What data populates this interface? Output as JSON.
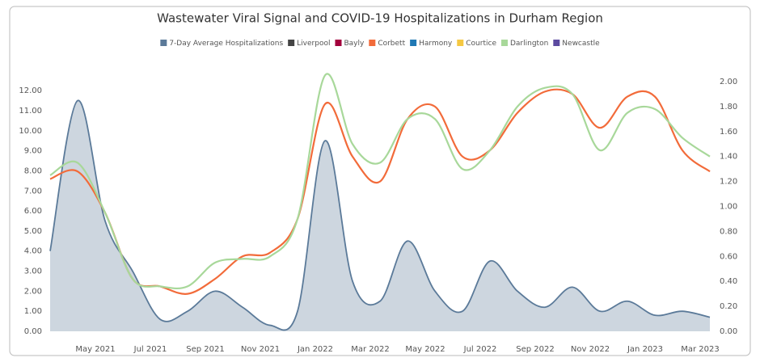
{
  "chart_data": {
    "type": "line",
    "title": "Wastewater Viral Signal and COVID-19 Hospitalizations in Durham Region",
    "x": [
      "2021-03",
      "2021-04",
      "2021-05",
      "2021-06",
      "2021-07",
      "2021-08",
      "2021-09",
      "2021-10",
      "2021-11",
      "2021-12",
      "2022-01",
      "2022-02",
      "2022-03",
      "2022-04",
      "2022-05",
      "2022-06",
      "2022-07",
      "2022-08",
      "2022-09",
      "2022-10",
      "2022-11",
      "2022-12",
      "2023-01",
      "2023-02",
      "2023-03"
    ],
    "xticks": [
      {
        "value": "2021-05",
        "label": "May 2021"
      },
      {
        "value": "2021-07",
        "label": "Jul 2021"
      },
      {
        "value": "2021-09",
        "label": "Sep 2021"
      },
      {
        "value": "2021-11",
        "label": "Nov 2021"
      },
      {
        "value": "2022-01",
        "label": "Jan 2022"
      },
      {
        "value": "2022-03",
        "label": "Mar 2022"
      },
      {
        "value": "2022-05",
        "label": "May 2022"
      },
      {
        "value": "2022-07",
        "label": "Jul 2022"
      },
      {
        "value": "2022-09",
        "label": "Sep 2022"
      },
      {
        "value": "2022-11",
        "label": "Nov 2022"
      },
      {
        "value": "2023-01",
        "label": "Jan 2023"
      },
      {
        "value": "2023-03",
        "label": "Mar 2023"
      }
    ],
    "ylim": [
      0,
      12.45
    ],
    "yticks": [
      {
        "value": 0,
        "label": "0.00"
      },
      {
        "value": 1,
        "label": "1.00"
      },
      {
        "value": 2,
        "label": "2.00"
      },
      {
        "value": 3,
        "label": "3.00"
      },
      {
        "value": 4,
        "label": "4.00"
      },
      {
        "value": 5,
        "label": "5.00"
      },
      {
        "value": 6,
        "label": "6.00"
      },
      {
        "value": 7,
        "label": "7.00"
      },
      {
        "value": 8,
        "label": "8.00"
      },
      {
        "value": 9,
        "label": "9.00"
      },
      {
        "value": 10,
        "label": "10.00"
      },
      {
        "value": 11,
        "label": "11.00"
      },
      {
        "value": 12,
        "label": "12.00"
      }
    ],
    "y2lim": [
      0,
      2
    ],
    "y2ticks": [
      {
        "value": 0,
        "label": "0.00"
      },
      {
        "value": 0.2,
        "label": "0.20"
      },
      {
        "value": 0.4,
        "label": "0.40"
      },
      {
        "value": 0.6,
        "label": "0.60"
      },
      {
        "value": 0.8,
        "label": "0.80"
      },
      {
        "value": 1,
        "label": "1.00"
      },
      {
        "value": 1.2,
        "label": "1.20"
      },
      {
        "value": 1.4,
        "label": "1.40"
      },
      {
        "value": 1.6,
        "label": "1.60"
      },
      {
        "value": 1.8,
        "label": "1.80"
      },
      {
        "value": 2,
        "label": "2.00"
      }
    ],
    "series": [
      {
        "name": "7-Day Average Hospitalizations",
        "color": "#5b7a99",
        "fill": "#cdd6df",
        "values": [
          4.0,
          11.5,
          5.5,
          3.0,
          0.6,
          1.0,
          2.0,
          1.2,
          0.3,
          1.0,
          9.5,
          2.5,
          1.5,
          4.5,
          2.0,
          1.0,
          3.5,
          2.0,
          1.2,
          2.2,
          1.0,
          1.5,
          0.8,
          1.0,
          0.7
        ]
      },
      {
        "name": "Liverpool",
        "color": "#444444",
        "axis": "y2",
        "values": [
          null,
          null,
          null,
          null,
          null,
          null,
          null,
          null,
          null,
          null,
          null,
          null,
          null,
          null,
          null,
          null,
          null,
          null,
          null,
          null,
          null,
          null,
          null,
          null,
          null
        ]
      },
      {
        "name": "Bayly",
        "color": "#a3003c",
        "axis": "y2",
        "values": [
          null,
          null,
          null,
          null,
          null,
          null,
          null,
          null,
          null,
          null,
          null,
          null,
          null,
          null,
          null,
          null,
          null,
          null,
          null,
          null,
          null,
          null,
          null,
          null,
          null
        ]
      },
      {
        "name": "Corbett",
        "color": "#f26b3a",
        "axis": "y2",
        "values": [
          1.22,
          1.28,
          0.95,
          0.42,
          0.36,
          0.3,
          0.42,
          0.6,
          0.63,
          0.9,
          1.82,
          1.4,
          1.2,
          1.7,
          1.8,
          1.4,
          1.45,
          1.75,
          1.92,
          1.9,
          1.63,
          1.88,
          1.88,
          1.45,
          1.28
        ]
      },
      {
        "name": "Harmony",
        "color": "#1f78b4",
        "axis": "y2",
        "values": [
          null,
          null,
          null,
          null,
          null,
          null,
          null,
          null,
          null,
          null,
          null,
          null,
          null,
          null,
          null,
          null,
          null,
          null,
          null,
          null,
          null,
          null,
          null,
          null,
          null
        ]
      },
      {
        "name": "Courtice",
        "color": "#f5c842",
        "axis": "y2",
        "values": [
          null,
          null,
          null,
          null,
          null,
          null,
          null,
          null,
          null,
          null,
          null,
          null,
          null,
          null,
          null,
          null,
          null,
          null,
          null,
          null,
          null,
          null,
          null,
          null,
          null
        ]
      },
      {
        "name": "Darlington",
        "color": "#a8d89a",
        "axis": "y2",
        "values": [
          1.25,
          1.35,
          0.95,
          0.42,
          0.36,
          0.36,
          0.55,
          0.58,
          0.6,
          0.9,
          2.05,
          1.5,
          1.35,
          1.7,
          1.7,
          1.3,
          1.45,
          1.8,
          1.95,
          1.9,
          1.45,
          1.75,
          1.78,
          1.55,
          1.4
        ]
      },
      {
        "name": "Newcastle",
        "color": "#5c4aa0",
        "axis": "y2",
        "values": [
          null,
          null,
          null,
          null,
          null,
          null,
          null,
          null,
          null,
          null,
          null,
          null,
          null,
          null,
          null,
          null,
          null,
          null,
          null,
          null,
          null,
          null,
          null,
          null,
          null
        ]
      }
    ]
  }
}
